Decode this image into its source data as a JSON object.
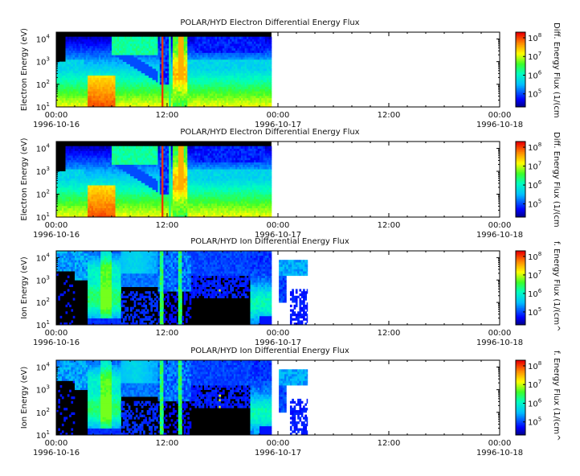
{
  "chart_data": [
    {
      "type": "heatmap",
      "title": "POLAR/HYD  Electron Differential Energy Flux",
      "ylabel": "Electron Energy (eV)",
      "yscale": "log",
      "ylim": [
        10,
        20000
      ],
      "y_ticks": [
        {
          "base": "10",
          "exp": "1"
        },
        {
          "base": "10",
          "exp": "2"
        },
        {
          "base": "10",
          "exp": "3"
        },
        {
          "base": "10",
          "exp": "4"
        }
      ],
      "x_ticks": [
        {
          "time": "00:00",
          "date": "1996-10-16"
        },
        {
          "time": "12:00",
          "date": ""
        },
        {
          "time": "00:00",
          "date": "1996-10-17"
        },
        {
          "time": "12:00",
          "date": ""
        },
        {
          "time": "00:00",
          "date": "1996-10-18"
        }
      ],
      "xlim_hours": [
        0,
        48
      ],
      "data_coverage_hours": [
        [
          0,
          23.3
        ]
      ],
      "colorbar_label": "Diff. Energy Flux (1/(cm",
      "colorbar_ticks": [
        {
          "base": "10",
          "exp": "5"
        },
        {
          "base": "10",
          "exp": "6"
        },
        {
          "base": "10",
          "exp": "7"
        },
        {
          "base": "10",
          "exp": "8"
        }
      ],
      "colorbar_range": [
        20000,
        200000000
      ],
      "species": "electron"
    },
    {
      "type": "heatmap",
      "title": "POLAR/HYD  Electron Differential Energy Flux",
      "ylabel": "Electron Energy (eV)",
      "yscale": "log",
      "ylim": [
        10,
        20000
      ],
      "y_ticks": [
        {
          "base": "10",
          "exp": "1"
        },
        {
          "base": "10",
          "exp": "2"
        },
        {
          "base": "10",
          "exp": "3"
        },
        {
          "base": "10",
          "exp": "4"
        }
      ],
      "x_ticks": [
        {
          "time": "00:00",
          "date": "1996-10-16"
        },
        {
          "time": "12:00",
          "date": ""
        },
        {
          "time": "00:00",
          "date": "1996-10-17"
        },
        {
          "time": "12:00",
          "date": ""
        },
        {
          "time": "00:00",
          "date": "1996-10-18"
        }
      ],
      "xlim_hours": [
        0,
        48
      ],
      "data_coverage_hours": [
        [
          0,
          23.3
        ]
      ],
      "colorbar_label": "Diff. Energy Flux (1/(cm",
      "colorbar_ticks": [
        {
          "base": "10",
          "exp": "5"
        },
        {
          "base": "10",
          "exp": "6"
        },
        {
          "base": "10",
          "exp": "7"
        },
        {
          "base": "10",
          "exp": "8"
        }
      ],
      "colorbar_range": [
        20000,
        200000000
      ],
      "species": "electron"
    },
    {
      "type": "heatmap",
      "title": "POLAR/HYD  Ion Differential Energy Flux",
      "ylabel": "Ion Energy (eV)",
      "yscale": "log",
      "ylim": [
        10,
        20000
      ],
      "y_ticks": [
        {
          "base": "10",
          "exp": "1"
        },
        {
          "base": "10",
          "exp": "2"
        },
        {
          "base": "10",
          "exp": "3"
        },
        {
          "base": "10",
          "exp": "4"
        }
      ],
      "x_ticks": [
        {
          "time": "00:00",
          "date": "1996-10-16"
        },
        {
          "time": "12:00",
          "date": ""
        },
        {
          "time": "00:00",
          "date": "1996-10-17"
        },
        {
          "time": "12:00",
          "date": ""
        },
        {
          "time": "00:00",
          "date": "1996-10-18"
        }
      ],
      "xlim_hours": [
        0,
        48
      ],
      "data_coverage_hours": [
        [
          0,
          23.3
        ],
        [
          24.1,
          27.2
        ]
      ],
      "colorbar_label": "f. Energy Flux (1/(cm^",
      "colorbar_ticks": [
        {
          "base": "10",
          "exp": "5"
        },
        {
          "base": "10",
          "exp": "6"
        },
        {
          "base": "10",
          "exp": "7"
        },
        {
          "base": "10",
          "exp": "8"
        }
      ],
      "colorbar_range": [
        20000,
        200000000
      ],
      "species": "ion"
    },
    {
      "type": "heatmap",
      "title": "POLAR/HYD  Ion Differential Energy Flux",
      "ylabel": "Ion Energy (eV)",
      "yscale": "log",
      "ylim": [
        10,
        20000
      ],
      "y_ticks": [
        {
          "base": "10",
          "exp": "1"
        },
        {
          "base": "10",
          "exp": "2"
        },
        {
          "base": "10",
          "exp": "3"
        },
        {
          "base": "10",
          "exp": "4"
        }
      ],
      "x_ticks": [
        {
          "time": "00:00",
          "date": "1996-10-16"
        },
        {
          "time": "12:00",
          "date": ""
        },
        {
          "time": "00:00",
          "date": "1996-10-17"
        },
        {
          "time": "12:00",
          "date": ""
        },
        {
          "time": "00:00",
          "date": "1996-10-18"
        }
      ],
      "xlim_hours": [
        0,
        48
      ],
      "data_coverage_hours": [
        [
          0,
          23.3
        ],
        [
          24.1,
          27.2
        ]
      ],
      "colorbar_label": "f. Energy Flux (1/(cm^",
      "colorbar_ticks": [
        {
          "base": "10",
          "exp": "5"
        },
        {
          "base": "10",
          "exp": "6"
        },
        {
          "base": "10",
          "exp": "7"
        },
        {
          "base": "10",
          "exp": "8"
        }
      ],
      "colorbar_range": [
        20000,
        200000000
      ],
      "species": "ion"
    }
  ]
}
